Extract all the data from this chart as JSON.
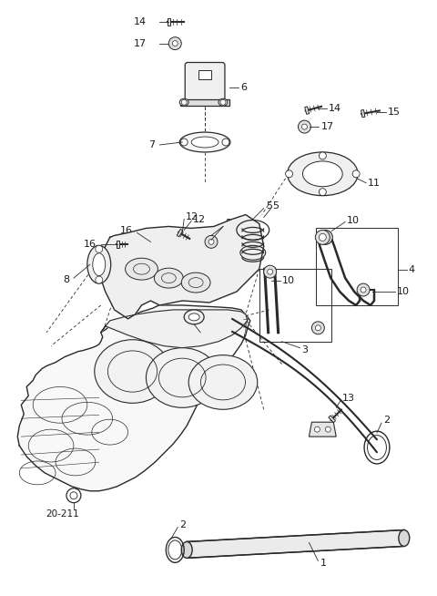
{
  "bg_color": "#ffffff",
  "line_color": "#2a2a2a",
  "fig_width": 4.8,
  "fig_height": 6.54,
  "dpi": 100,
  "lw": 0.9,
  "label_fs": 8.0,
  "label_color": "#1a1a1a"
}
